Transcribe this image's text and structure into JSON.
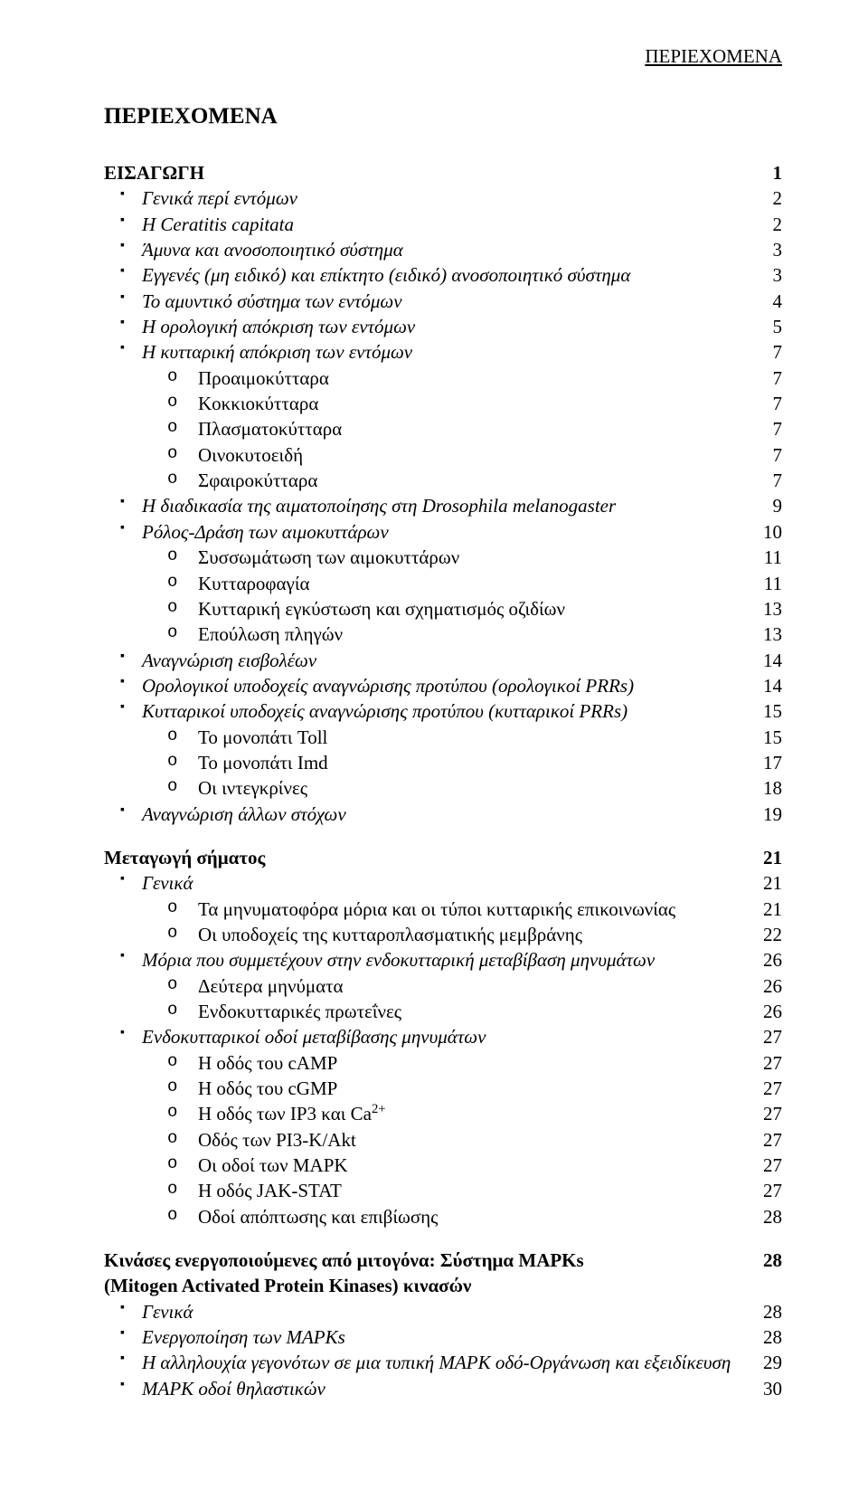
{
  "running_header": "ΠΕΡΙΕΧΟΜΕΝΑ",
  "title": "ΠΕΡΙΕΧΟΜΕΝΑ",
  "h1": {
    "label": "ΕΙΣΑΓΩΓΗ",
    "page": "1"
  },
  "l1": {
    "label": "Γενικά περί εντόμων",
    "page": "2"
  },
  "l2": {
    "label": "Η Ceratitis capitata",
    "page": "2"
  },
  "l3": {
    "label": "Άμυνα και ανοσοποιητικό σύστημα",
    "page": "3"
  },
  "l4": {
    "label": "Εγγενές (μη ειδικό) και επίκτητο (ειδικό) ανοσοποιητικό σύστημα",
    "page": "3"
  },
  "l5": {
    "label": "Το αμυντικό σύστημα των εντόμων",
    "page": "4"
  },
  "l6": {
    "label": "Η ορολογική απόκριση των εντόμων",
    "page": "5"
  },
  "l7": {
    "label": "Η κυτταρική απόκριση των εντόμων",
    "page": "7"
  },
  "l8": {
    "label": "Προαιμοκύτταρα",
    "page": "7"
  },
  "l9": {
    "label": "Κοκκιοκύτταρα",
    "page": "7"
  },
  "l10": {
    "label": "Πλασματοκύτταρα",
    "page": "7"
  },
  "l11": {
    "label": "Οινοκυτοειδή",
    "page": "7"
  },
  "l12": {
    "label": "Σφαιροκύτταρα",
    "page": "7"
  },
  "l13": {
    "label": "Η διαδικασία της αιματοποίησης στη Drosophila melanogaster",
    "page": "9"
  },
  "l14": {
    "label": "Ρόλος-Δράση των αιμοκυττάρων",
    "page": "10"
  },
  "l15": {
    "label": "Συσσωμάτωση των αιμοκυττάρων",
    "page": "11"
  },
  "l16": {
    "label": "Κυτταροφαγία",
    "page": "11"
  },
  "l17": {
    "label": "Κυτταρική εγκύστωση και σχηματισμός οζιδίων",
    "page": "13"
  },
  "l18": {
    "label": "Επούλωση πληγών",
    "page": "13"
  },
  "l19": {
    "label": "Αναγνώριση εισβολέων",
    "page": "14"
  },
  "l20": {
    "label": "Ορολογικοί υποδοχείς αναγνώρισης προτύπου (ορολογικοί PRRs)",
    "page": "14"
  },
  "l21": {
    "label": "Κυτταρικοί υποδοχείς αναγνώρισης προτύπου (κυτταρικοί PRRs)",
    "page": "15"
  },
  "l22": {
    "label": "Το μονοπάτι Toll",
    "page": "15"
  },
  "l23": {
    "label": "Το μονοπάτι Imd",
    "page": "17"
  },
  "l24": {
    "label": "Οι ιντεγκρίνες",
    "page": "18"
  },
  "l25": {
    "label": "Αναγνώριση άλλων στόχων",
    "page": "19"
  },
  "h2": {
    "label": "Μεταγωγή σήματος",
    "page": "21"
  },
  "l26": {
    "label": "Γενικά",
    "page": "21"
  },
  "l27": {
    "label": "Τα μηνυματοφόρα μόρια και οι τύποι κυτταρικής επικοινωνίας",
    "page": "21"
  },
  "l28": {
    "label": "Οι υποδοχείς της κυτταροπλασματικής μεμβράνης",
    "page": "22"
  },
  "l29": {
    "label": "Μόρια που συμμετέχουν στην ενδοκυτταρική μεταβίβαση μηνυμάτων",
    "page": "26"
  },
  "l30": {
    "label": "Δεύτερα μηνύματα",
    "page": "26"
  },
  "l31": {
    "label": "Ενδοκυτταρικές πρωτεΐνες",
    "page": "26"
  },
  "l32": {
    "label": "Ενδοκυτταρικοί οδοί μεταβίβασης μηνυμάτων",
    "page": "27"
  },
  "l33": {
    "label": "Η οδός του cAMP",
    "page": "27"
  },
  "l34": {
    "label": "Η οδός του cGMP",
    "page": "27"
  },
  "l35p": {
    "pre": "Η οδός των IP3 και Ca",
    "sup": "2+",
    "page": "27"
  },
  "l36": {
    "label": "Οδός των PI3-K/Akt",
    "page": "27"
  },
  "l37": {
    "label": "Οι οδοί των MAPK",
    "page": "27"
  },
  "l38": {
    "label": "Η οδός JAK-STAT",
    "page": "27"
  },
  "l39": {
    "label": "Οδοί απόπτωσης και επιβίωσης",
    "page": "28"
  },
  "h3a": "Κινάσες ενεργοποιούμενες από μιτογόνα: Σύστημα MAPKs",
  "h3b": "(Mitogen Activated Protein Kinases) κινασών",
  "h3p": "28",
  "l40": {
    "label": "Γενικά",
    "page": "28"
  },
  "l41": {
    "label": "Ενεργοποίηση των MAPKs",
    "page": "28"
  },
  "l42": {
    "label": "Η αλληλουχία γεγονότων σε μια τυπική MAPK οδό-Οργάνωση και εξειδίκευση",
    "page": "29"
  },
  "l43": {
    "label": "MAPK οδοί θηλαστικών",
    "page": "30"
  }
}
